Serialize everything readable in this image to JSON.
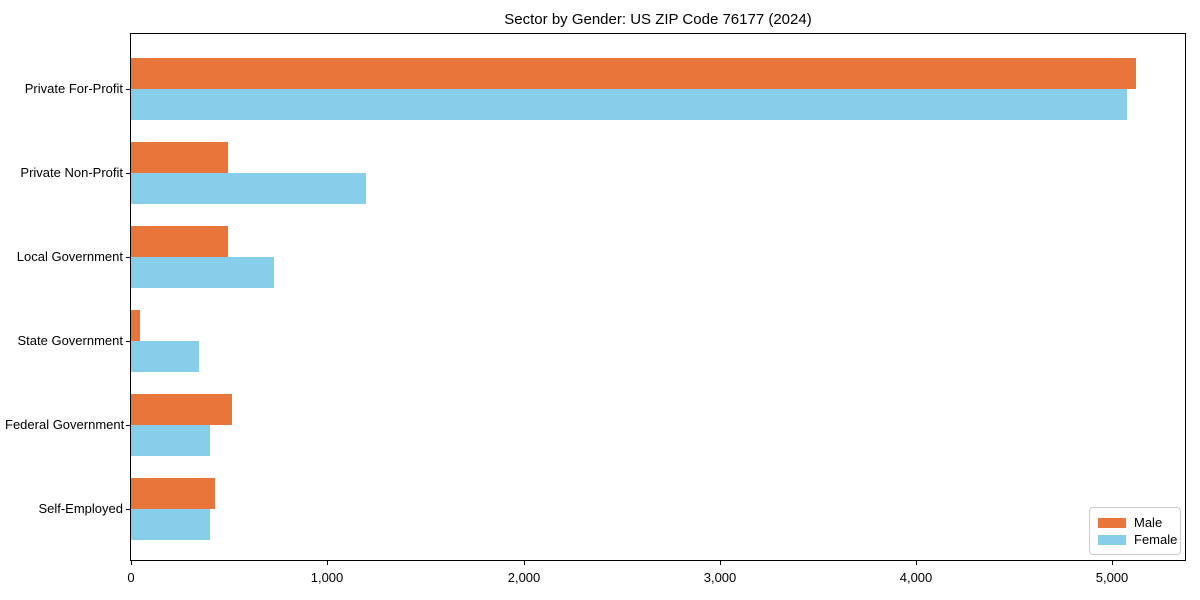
{
  "chart_data": {
    "type": "bar",
    "orientation": "horizontal",
    "title": "Sector by Gender: US ZIP Code 76177 (2024)",
    "categories": [
      "Private For-Profit",
      "Private Non-Profit",
      "Local Government",
      "State Government",
      "Federal Government",
      "Self-Employed"
    ],
    "series": [
      {
        "name": "Male",
        "color": "#e8763a",
        "values": [
          5120,
          495,
          495,
          45,
          515,
          430
        ]
      },
      {
        "name": "Female",
        "color": "#87ceeb",
        "values": [
          5075,
          1195,
          730,
          345,
          405,
          405
        ]
      }
    ],
    "xlim": [
      0,
      5380
    ],
    "xticks": [
      0,
      1000,
      2000,
      3000,
      4000,
      5000
    ],
    "xtick_labels": [
      "0",
      "1,000",
      "2,000",
      "3,000",
      "4,000",
      "5,000"
    ],
    "grid": false,
    "legend": {
      "position": "lower right",
      "entries": [
        "Male",
        "Female"
      ]
    }
  }
}
